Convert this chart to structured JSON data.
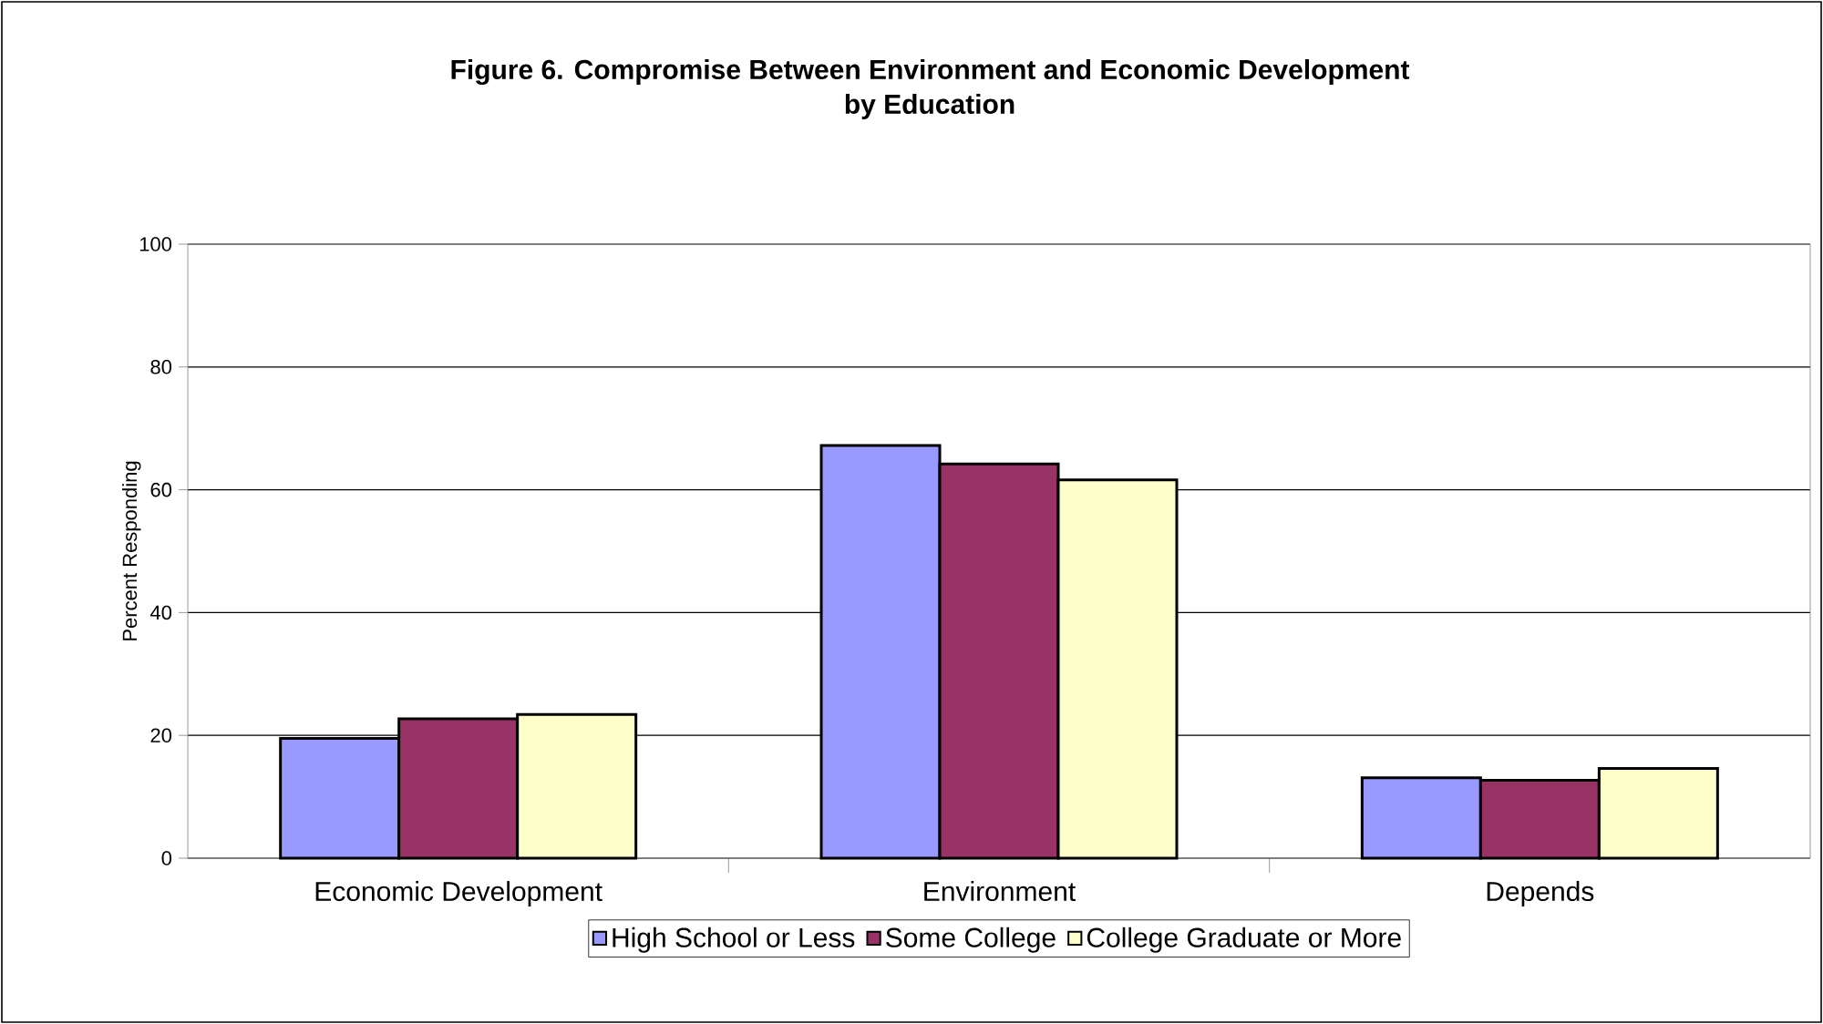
{
  "chart_data": {
    "type": "bar",
    "title": "Figure 6. Compromise Between Environment and Economic Development",
    "subtitle": "by Education",
    "ylabel": "Percent Responding",
    "categories": [
      "Economic Development",
      "Environment",
      "Depends"
    ],
    "series": [
      {
        "name": "High School or Less",
        "color": "#9999ff",
        "values": [
          19.5,
          67.2,
          13.1
        ]
      },
      {
        "name": "Some College",
        "color": "#993366",
        "values": [
          22.7,
          64.2,
          12.7
        ]
      },
      {
        "name": "College Graduate or More",
        "color": "#ffffcc",
        "values": [
          23.4,
          61.6,
          14.6
        ]
      }
    ],
    "ylim": [
      0,
      100
    ],
    "yticks": [
      0,
      20,
      40,
      60,
      80,
      100
    ],
    "grid": "y",
    "legend": "bottom"
  }
}
